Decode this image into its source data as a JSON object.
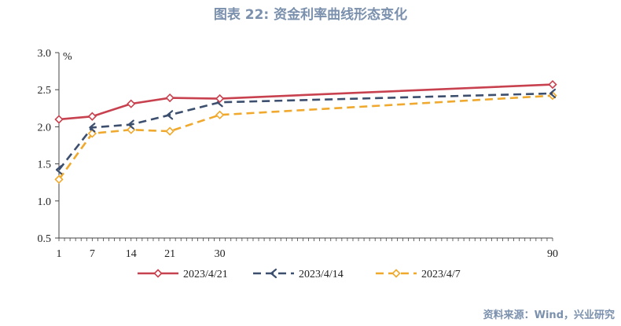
{
  "title": "图表 22: 资金利率曲线形态变化",
  "source": "资料来源：Wind，兴业研究",
  "colors": {
    "series_0": "#c8414f",
    "series_1": "#3c4f6e",
    "series_2": "#f0a92c",
    "axis": "#444444"
  },
  "chart_data": {
    "type": "line",
    "x": [
      1,
      7,
      14,
      21,
      30,
      90
    ],
    "xlim": [
      1,
      90
    ],
    "xticks": [
      "1",
      "7",
      "14",
      "21",
      "30",
      "90"
    ],
    "ylim": [
      0.5,
      3.0
    ],
    "yticks": [
      "0.5",
      "1.0",
      "1.5",
      "2.0",
      "2.5",
      "3.0"
    ],
    "ylabel": "%",
    "grid": false,
    "legend_position": "bottom",
    "series": [
      {
        "name": "2023/4/21",
        "values": [
          2.1,
          2.14,
          2.31,
          2.39,
          2.38,
          2.57
        ],
        "line_style": "solid",
        "marker": "diamond"
      },
      {
        "name": "2023/4/14",
        "values": [
          1.42,
          1.99,
          2.03,
          2.16,
          2.33,
          2.45
        ],
        "line_style": "dashed",
        "marker": "chevron"
      },
      {
        "name": "2023/4/7",
        "values": [
          1.29,
          1.91,
          1.96,
          1.94,
          2.16,
          2.42
        ],
        "line_style": "dashed",
        "marker": "diamond"
      }
    ]
  }
}
